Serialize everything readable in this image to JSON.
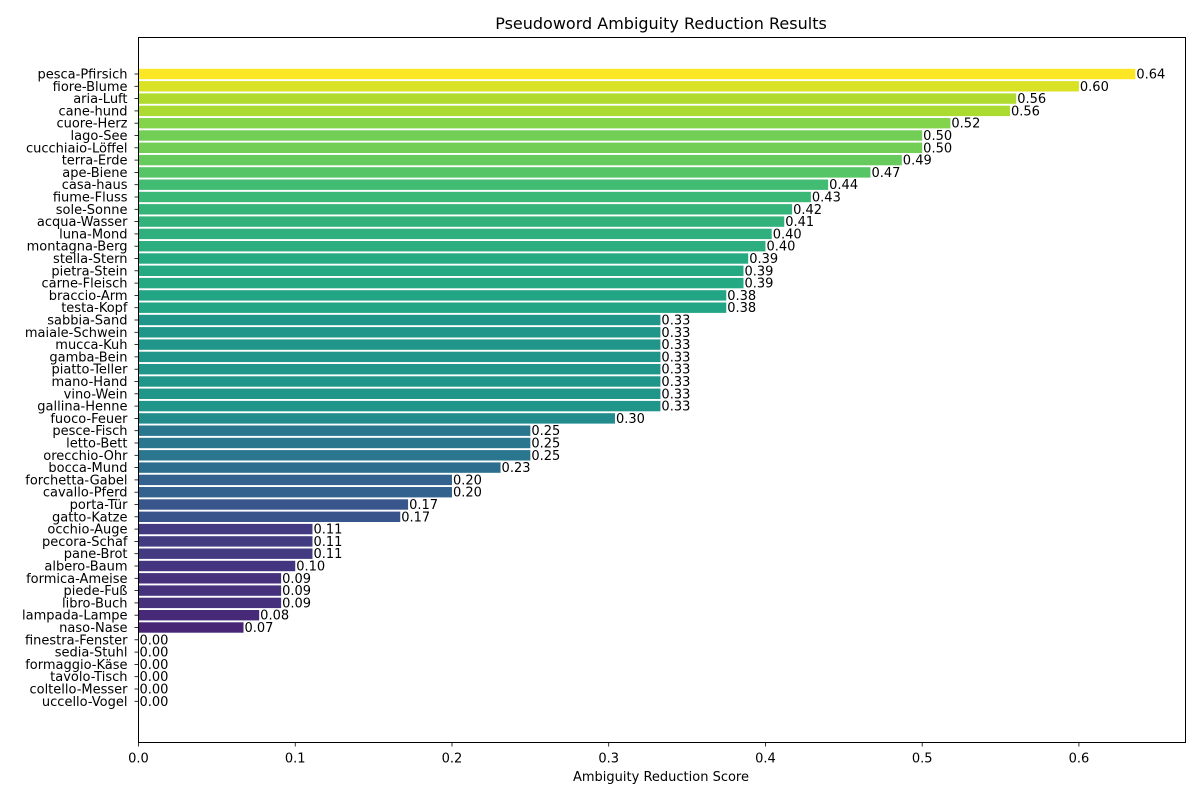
{
  "chart_data": {
    "type": "bar",
    "orientation": "horizontal",
    "title": "Pseudoword Ambiguity Reduction Results",
    "xlabel": "Ambiguity Reduction Score",
    "ylabel": "",
    "xlim": [
      0,
      0.668
    ],
    "xticks": [
      0.0,
      0.1,
      0.2,
      0.3,
      0.4,
      0.5,
      0.6
    ],
    "xtick_labels": [
      "0.0",
      "0.1",
      "0.2",
      "0.3",
      "0.4",
      "0.5",
      "0.6"
    ],
    "grid": false,
    "legend": "none",
    "colormap": "viridis",
    "categories": [
      "pesca-Pfirsich",
      "fiore-Blume",
      "aria-Luft",
      "cane-hund",
      "cuore-Herz",
      "lago-See",
      "cucchiaio-Löffel",
      "terra-Erde",
      "ape-Biene",
      "casa-haus",
      "fiume-Fluss",
      "sole-Sonne",
      "acqua-Wasser",
      "luna-Mond",
      "montagna-Berg",
      "stella-Stern",
      "pietra-Stein",
      "carne-Fleisch",
      "braccio-Arm",
      "testa-Kopf",
      "sabbia-Sand",
      "maiale-Schwein",
      "mucca-Kuh",
      "gamba-Bein",
      "piatto-Teller",
      "mano-Hand",
      "vino-Wein",
      "gallina-Henne",
      "fuoco-Feuer",
      "pesce-Fisch",
      "letto-Bett",
      "orecchio-Ohr",
      "bocca-Mund",
      "forchetta-Gabel",
      "cavallo-Pferd",
      "porta-Tür",
      "gatto-Katze",
      "occhio-Auge",
      "pecora-Schaf",
      "pane-Brot",
      "albero-Baum",
      "formica-Ameise",
      "piede-Fuß",
      "libro-Buch",
      "lampada-Lampe",
      "naso-Nase",
      "finestra-Fenster",
      "sedia-Stuhl",
      "formaggio-Käse",
      "tavolo-Tisch",
      "coltello-Messer",
      "uccello-Vogel"
    ],
    "values": [
      0.636,
      0.6,
      0.56,
      0.556,
      0.518,
      0.5,
      0.5,
      0.487,
      0.467,
      0.44,
      0.429,
      0.417,
      0.412,
      0.404,
      0.4,
      0.389,
      0.386,
      0.386,
      0.375,
      0.375,
      0.333,
      0.333,
      0.333,
      0.333,
      0.333,
      0.333,
      0.333,
      0.333,
      0.304,
      0.25,
      0.25,
      0.25,
      0.231,
      0.2,
      0.2,
      0.172,
      0.167,
      0.111,
      0.111,
      0.111,
      0.1,
      0.091,
      0.091,
      0.091,
      0.077,
      0.067,
      0.0,
      0.0,
      0.0,
      0.0,
      0.0,
      0.0
    ],
    "value_labels": [
      "0.64",
      "0.60",
      "0.56",
      "0.56",
      "0.52",
      "0.50",
      "0.50",
      "0.49",
      "0.47",
      "0.44",
      "0.43",
      "0.42",
      "0.41",
      "0.40",
      "0.40",
      "0.39",
      "0.39",
      "0.39",
      "0.38",
      "0.38",
      "0.33",
      "0.33",
      "0.33",
      "0.33",
      "0.33",
      "0.33",
      "0.33",
      "0.33",
      "0.30",
      "0.25",
      "0.25",
      "0.25",
      "0.23",
      "0.20",
      "0.20",
      "0.17",
      "0.17",
      "0.11",
      "0.11",
      "0.11",
      "0.10",
      "0.09",
      "0.09",
      "0.09",
      "0.08",
      "0.07",
      "0.00",
      "0.00",
      "0.00",
      "0.00",
      "0.00",
      "0.00"
    ]
  }
}
